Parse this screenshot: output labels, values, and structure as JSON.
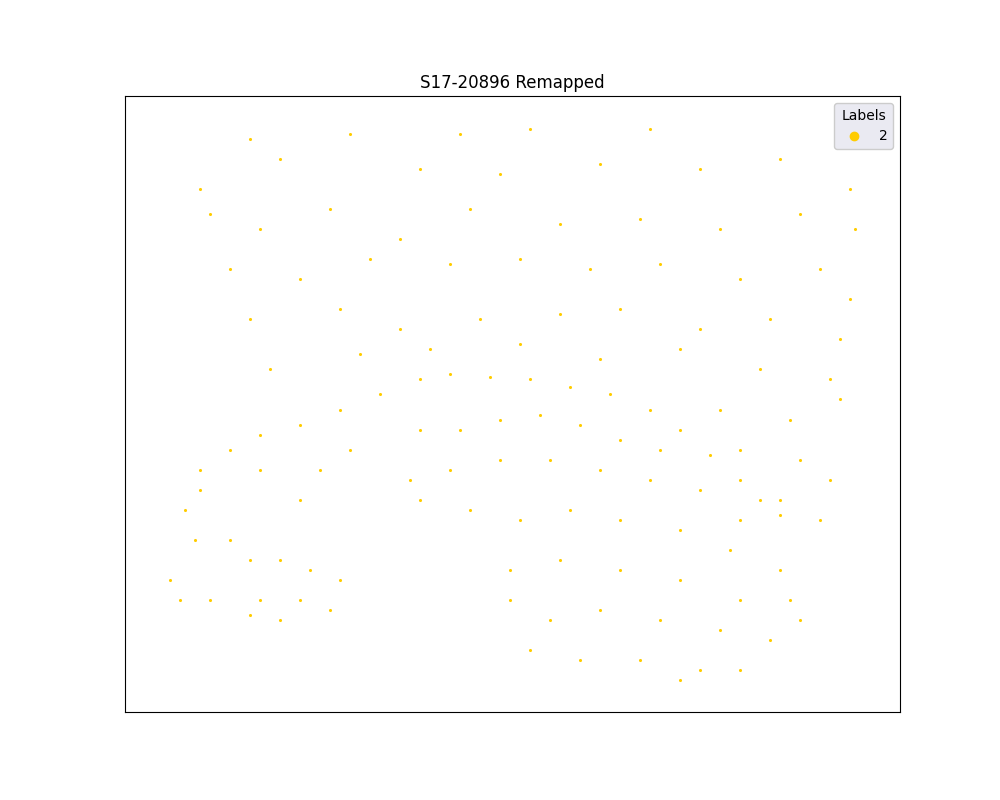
{
  "chart_data": {
    "type": "scatter",
    "title": "S17-20896 Remapped",
    "legend_title": "Labels",
    "legend": "upper right",
    "tick_labels": false,
    "xlim": [
      125,
      900
    ],
    "ylim": [
      712,
      97
    ],
    "series": [
      {
        "name": "2",
        "color": "#ffcc00",
        "marker": "o",
        "x": [
          250,
          350,
          460,
          530,
          650,
          200,
          280,
          420,
          500,
          600,
          700,
          780,
          850,
          210,
          260,
          330,
          400,
          470,
          560,
          640,
          720,
          800,
          855,
          230,
          300,
          370,
          450,
          520,
          590,
          660,
          740,
          820,
          850,
          250,
          340,
          400,
          480,
          560,
          620,
          700,
          770,
          840,
          270,
          360,
          430,
          520,
          600,
          680,
          760,
          830,
          720,
          790,
          840,
          740,
          800,
          830,
          780,
          820,
          200,
          230,
          260,
          300,
          340,
          380,
          420,
          450,
          490,
          530,
          570,
          610,
          650,
          680,
          710,
          740,
          760,
          780,
          185,
          200,
          195,
          170,
          180,
          210,
          230,
          260,
          320,
          350,
          300,
          250,
          280,
          310,
          340,
          260,
          300,
          330,
          250,
          280,
          420,
          460,
          500,
          540,
          580,
          620,
          660,
          410,
          450,
          500,
          550,
          600,
          650,
          700,
          740,
          420,
          470,
          520,
          570,
          620,
          680,
          730,
          780,
          510,
          560,
          620,
          680,
          740,
          790,
          800,
          510,
          550,
          600,
          660,
          720,
          770,
          530,
          580,
          640,
          700,
          740,
          680
        ],
        "y": [
          140,
          135,
          135,
          130,
          130,
          190,
          160,
          170,
          175,
          165,
          170,
          160,
          190,
          215,
          230,
          210,
          240,
          210,
          225,
          220,
          230,
          215,
          230,
          270,
          280,
          260,
          265,
          260,
          270,
          265,
          280,
          270,
          300,
          320,
          310,
          330,
          320,
          315,
          310,
          330,
          320,
          340,
          370,
          355,
          350,
          345,
          360,
          350,
          370,
          380,
          410,
          420,
          400,
          450,
          460,
          480,
          500,
          520,
          470,
          450,
          435,
          425,
          410,
          395,
          380,
          375,
          378,
          380,
          388,
          395,
          410,
          430,
          455,
          480,
          500,
          515,
          510,
          490,
          540,
          580,
          600,
          600,
          540,
          470,
          470,
          450,
          500,
          560,
          560,
          570,
          580,
          600,
          600,
          610,
          615,
          620,
          430,
          430,
          420,
          415,
          425,
          440,
          450,
          480,
          470,
          460,
          460,
          470,
          480,
          490,
          520,
          500,
          510,
          520,
          510,
          520,
          530,
          550,
          570,
          570,
          560,
          570,
          580,
          600,
          600,
          620,
          600,
          620,
          610,
          620,
          630,
          640,
          650,
          660,
          660,
          670,
          670,
          680
        ]
      }
    ]
  }
}
